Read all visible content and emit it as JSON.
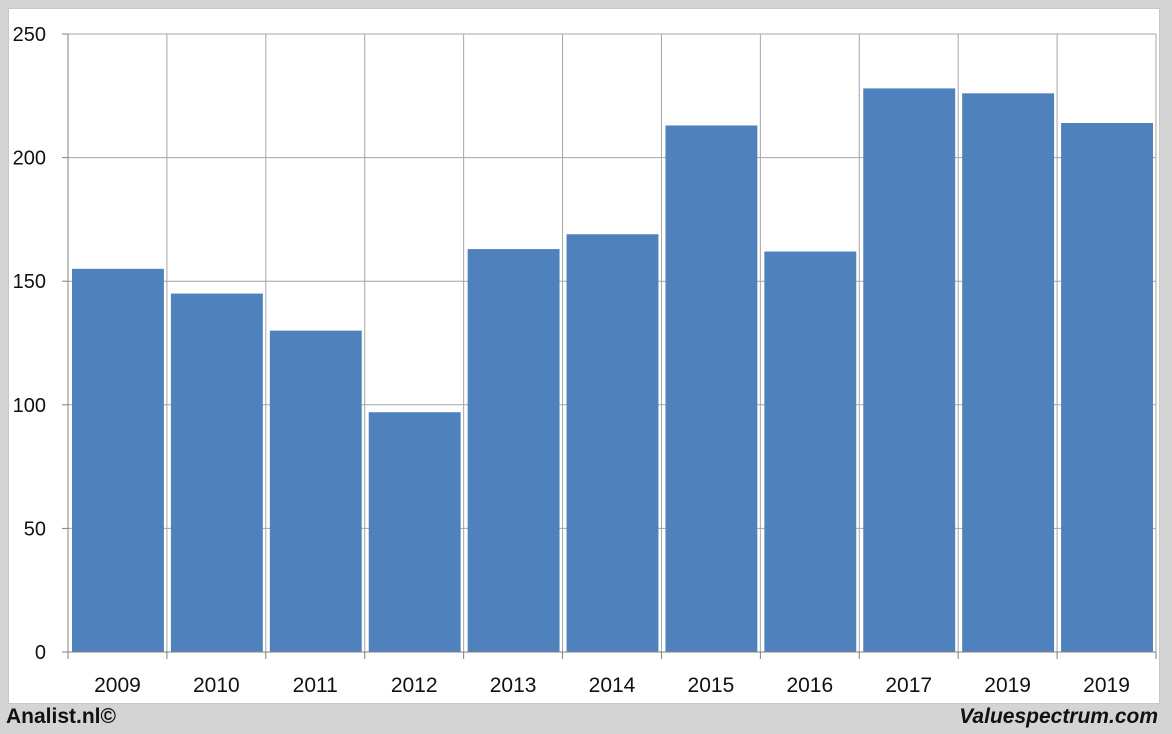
{
  "chart_data": {
    "type": "bar",
    "categories": [
      "2009",
      "2010",
      "2011",
      "2012",
      "2013",
      "2014",
      "2015",
      "2016",
      "2017",
      "2019",
      "2019"
    ],
    "values": [
      155,
      145,
      130,
      97,
      163,
      169,
      213,
      162,
      228,
      226,
      214
    ],
    "yticks": [
      "0",
      "50",
      "100",
      "150",
      "200",
      "250"
    ],
    "ylim": [
      0,
      250
    ],
    "grid": true,
    "bar_color": "#4f81bd"
  },
  "footer": {
    "left": "Analist.nl©",
    "right": "Valuespectrum.com"
  }
}
